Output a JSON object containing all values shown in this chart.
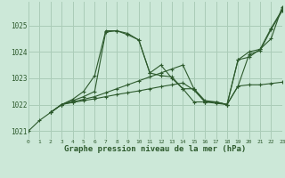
{
  "bg_color": "#cce8d8",
  "grid_color": "#aaccb8",
  "line_color": "#2d5a2d",
  "lines": [
    {
      "x": [
        0,
        1,
        2,
        3,
        4,
        5,
        6,
        7,
        8,
        9,
        10,
        11,
        12,
        13,
        14,
        15,
        16,
        17,
        18,
        19,
        20,
        21,
        22,
        23
      ],
      "y": [
        1021.0,
        1021.4,
        1021.7,
        1022.0,
        1022.2,
        1022.5,
        1023.1,
        1024.8,
        1024.8,
        1024.7,
        1024.45,
        1023.2,
        1023.1,
        1023.05,
        1022.6,
        1022.1,
        1022.1,
        1022.05,
        1022.0,
        1023.7,
        1023.8,
        1024.1,
        1024.5,
        1025.7
      ]
    },
    {
      "x": [
        2,
        3,
        4,
        5,
        6,
        7,
        8,
        9,
        10,
        11,
        12,
        13,
        14,
        15,
        16,
        17,
        18,
        19,
        20,
        21,
        22,
        23
      ],
      "y": [
        1021.7,
        1022.0,
        1022.15,
        1022.3,
        1022.5,
        1024.75,
        1024.8,
        1024.65,
        1024.45,
        1023.2,
        1023.5,
        1023.0,
        1022.6,
        1022.6,
        1022.15,
        1022.1,
        1022.0,
        1022.7,
        1022.75,
        1022.75,
        1022.8,
        1022.85
      ]
    },
    {
      "x": [
        2,
        3,
        4,
        5,
        6,
        7,
        8,
        9,
        10,
        11,
        12,
        13,
        14,
        15,
        16,
        17,
        18,
        19,
        20,
        21,
        22,
        23
      ],
      "y": [
        1021.7,
        1022.0,
        1022.1,
        1022.2,
        1022.3,
        1022.45,
        1022.6,
        1022.75,
        1022.9,
        1023.05,
        1023.2,
        1023.35,
        1023.5,
        1022.6,
        1022.1,
        1022.1,
        1022.0,
        1023.7,
        1024.0,
        1024.1,
        1024.9,
        1025.6
      ]
    },
    {
      "x": [
        2,
        3,
        4,
        5,
        6,
        7,
        8,
        9,
        10,
        11,
        12,
        13,
        14,
        15,
        16,
        17,
        18,
        19,
        20,
        21,
        22,
        23
      ],
      "y": [
        1021.7,
        1022.0,
        1022.08,
        1022.15,
        1022.22,
        1022.3,
        1022.38,
        1022.45,
        1022.52,
        1022.6,
        1022.68,
        1022.75,
        1022.82,
        1022.55,
        1022.1,
        1022.1,
        1022.0,
        1022.7,
        1023.9,
        1024.05,
        1024.85,
        1025.55
      ]
    }
  ],
  "xlim": [
    0,
    23
  ],
  "ylim": [
    1020.7,
    1025.9
  ],
  "yticks": [
    1021,
    1022,
    1023,
    1024,
    1025
  ],
  "xticks": [
    0,
    1,
    2,
    3,
    4,
    5,
    6,
    7,
    8,
    9,
    10,
    11,
    12,
    13,
    14,
    15,
    16,
    17,
    18,
    19,
    20,
    21,
    22,
    23
  ],
  "xlabel": "Graphe pression niveau de la mer (hPa)",
  "font_family": "monospace",
  "xlabel_fontsize": 6.5,
  "ytick_fontsize": 5.5,
  "xtick_fontsize": 4.5
}
